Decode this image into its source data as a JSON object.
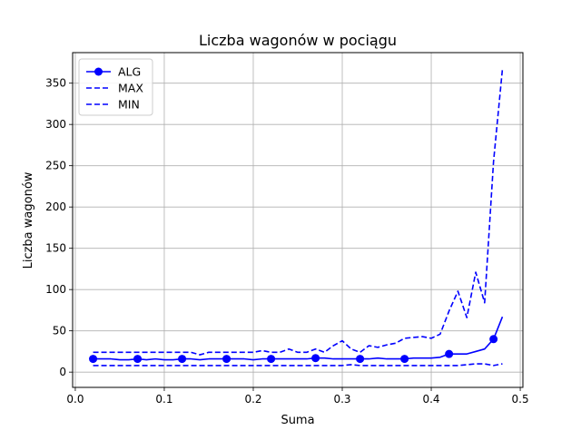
{
  "chart_data": {
    "type": "line",
    "title": "Liczba wagonów w pociągu",
    "xlabel": "Suma",
    "ylabel": "Liczba wagonów",
    "xlim": [
      -0.003,
      0.503
    ],
    "ylim": [
      -18.5,
      387.0
    ],
    "xticks": [
      0.0,
      0.1,
      0.2,
      0.3,
      0.4,
      0.5
    ],
    "xtick_labels": [
      "0.0",
      "0.1",
      "0.2",
      "0.3",
      "0.4",
      "0.5"
    ],
    "yticks": [
      0,
      50,
      100,
      150,
      200,
      250,
      300,
      350
    ],
    "ytick_labels": [
      "0",
      "50",
      "100",
      "150",
      "200",
      "250",
      "300",
      "350"
    ],
    "grid": true,
    "legend_position": "top-left",
    "series": [
      {
        "name": "ALG",
        "color": "#0000ff",
        "style": "solid",
        "marker": "circle",
        "x": [
          0.02,
          0.03,
          0.04,
          0.05,
          0.06,
          0.07,
          0.08,
          0.09,
          0.1,
          0.11,
          0.12,
          0.13,
          0.14,
          0.15,
          0.16,
          0.17,
          0.18,
          0.19,
          0.2,
          0.21,
          0.22,
          0.23,
          0.24,
          0.25,
          0.26,
          0.27,
          0.28,
          0.29,
          0.3,
          0.31,
          0.32,
          0.33,
          0.34,
          0.35,
          0.36,
          0.37,
          0.38,
          0.39,
          0.4,
          0.41,
          0.42,
          0.43,
          0.44,
          0.45,
          0.46,
          0.47,
          0.48
        ],
        "y": [
          16,
          16,
          16,
          15,
          15,
          16,
          15,
          16,
          15,
          15,
          16,
          16,
          15,
          16,
          16,
          16,
          16,
          16,
          15,
          16,
          16,
          16,
          16,
          16,
          16,
          17,
          17,
          16,
          16,
          16,
          16,
          16,
          17,
          16,
          16,
          16,
          17,
          17,
          17,
          18,
          22,
          22,
          22,
          25,
          28,
          40,
          67
        ],
        "marker_x": [
          0.02,
          0.07,
          0.12,
          0.17,
          0.22,
          0.27,
          0.32,
          0.37,
          0.42,
          0.47
        ]
      },
      {
        "name": "MAX",
        "color": "#0000ff",
        "style": "dashed",
        "x": [
          0.02,
          0.03,
          0.04,
          0.05,
          0.06,
          0.07,
          0.08,
          0.09,
          0.1,
          0.11,
          0.12,
          0.13,
          0.14,
          0.15,
          0.16,
          0.17,
          0.18,
          0.19,
          0.2,
          0.21,
          0.22,
          0.23,
          0.24,
          0.25,
          0.26,
          0.27,
          0.28,
          0.29,
          0.3,
          0.31,
          0.32,
          0.33,
          0.34,
          0.35,
          0.36,
          0.37,
          0.38,
          0.39,
          0.4,
          0.41,
          0.42,
          0.43,
          0.44,
          0.45,
          0.46,
          0.47,
          0.48
        ],
        "y": [
          24,
          24,
          24,
          24,
          24,
          24,
          24,
          24,
          24,
          24,
          24,
          24,
          21,
          24,
          24,
          24,
          24,
          24,
          24,
          26,
          24,
          24,
          28,
          24,
          24,
          28,
          24,
          32,
          38,
          28,
          24,
          32,
          30,
          33,
          35,
          41,
          42,
          43,
          41,
          46,
          74,
          98,
          66,
          121,
          84,
          255,
          367
        ]
      },
      {
        "name": "MIN",
        "color": "#0000ff",
        "style": "dashed",
        "x": [
          0.02,
          0.03,
          0.04,
          0.05,
          0.06,
          0.07,
          0.08,
          0.09,
          0.1,
          0.11,
          0.12,
          0.13,
          0.14,
          0.15,
          0.16,
          0.17,
          0.18,
          0.19,
          0.2,
          0.21,
          0.22,
          0.23,
          0.24,
          0.25,
          0.26,
          0.27,
          0.28,
          0.29,
          0.3,
          0.31,
          0.32,
          0.33,
          0.34,
          0.35,
          0.36,
          0.37,
          0.38,
          0.39,
          0.4,
          0.41,
          0.42,
          0.43,
          0.44,
          0.45,
          0.46,
          0.47,
          0.48
        ],
        "y": [
          8,
          8,
          8,
          8,
          8,
          8,
          8,
          8,
          8,
          8,
          8,
          8,
          8,
          8,
          8,
          8,
          8,
          8,
          8,
          8,
          8,
          8,
          8,
          8,
          8,
          8,
          8,
          8,
          8,
          9,
          8,
          8,
          8,
          8,
          8,
          8,
          8,
          8,
          8,
          8,
          8,
          8,
          9,
          10,
          10,
          8,
          10
        ]
      }
    ]
  }
}
